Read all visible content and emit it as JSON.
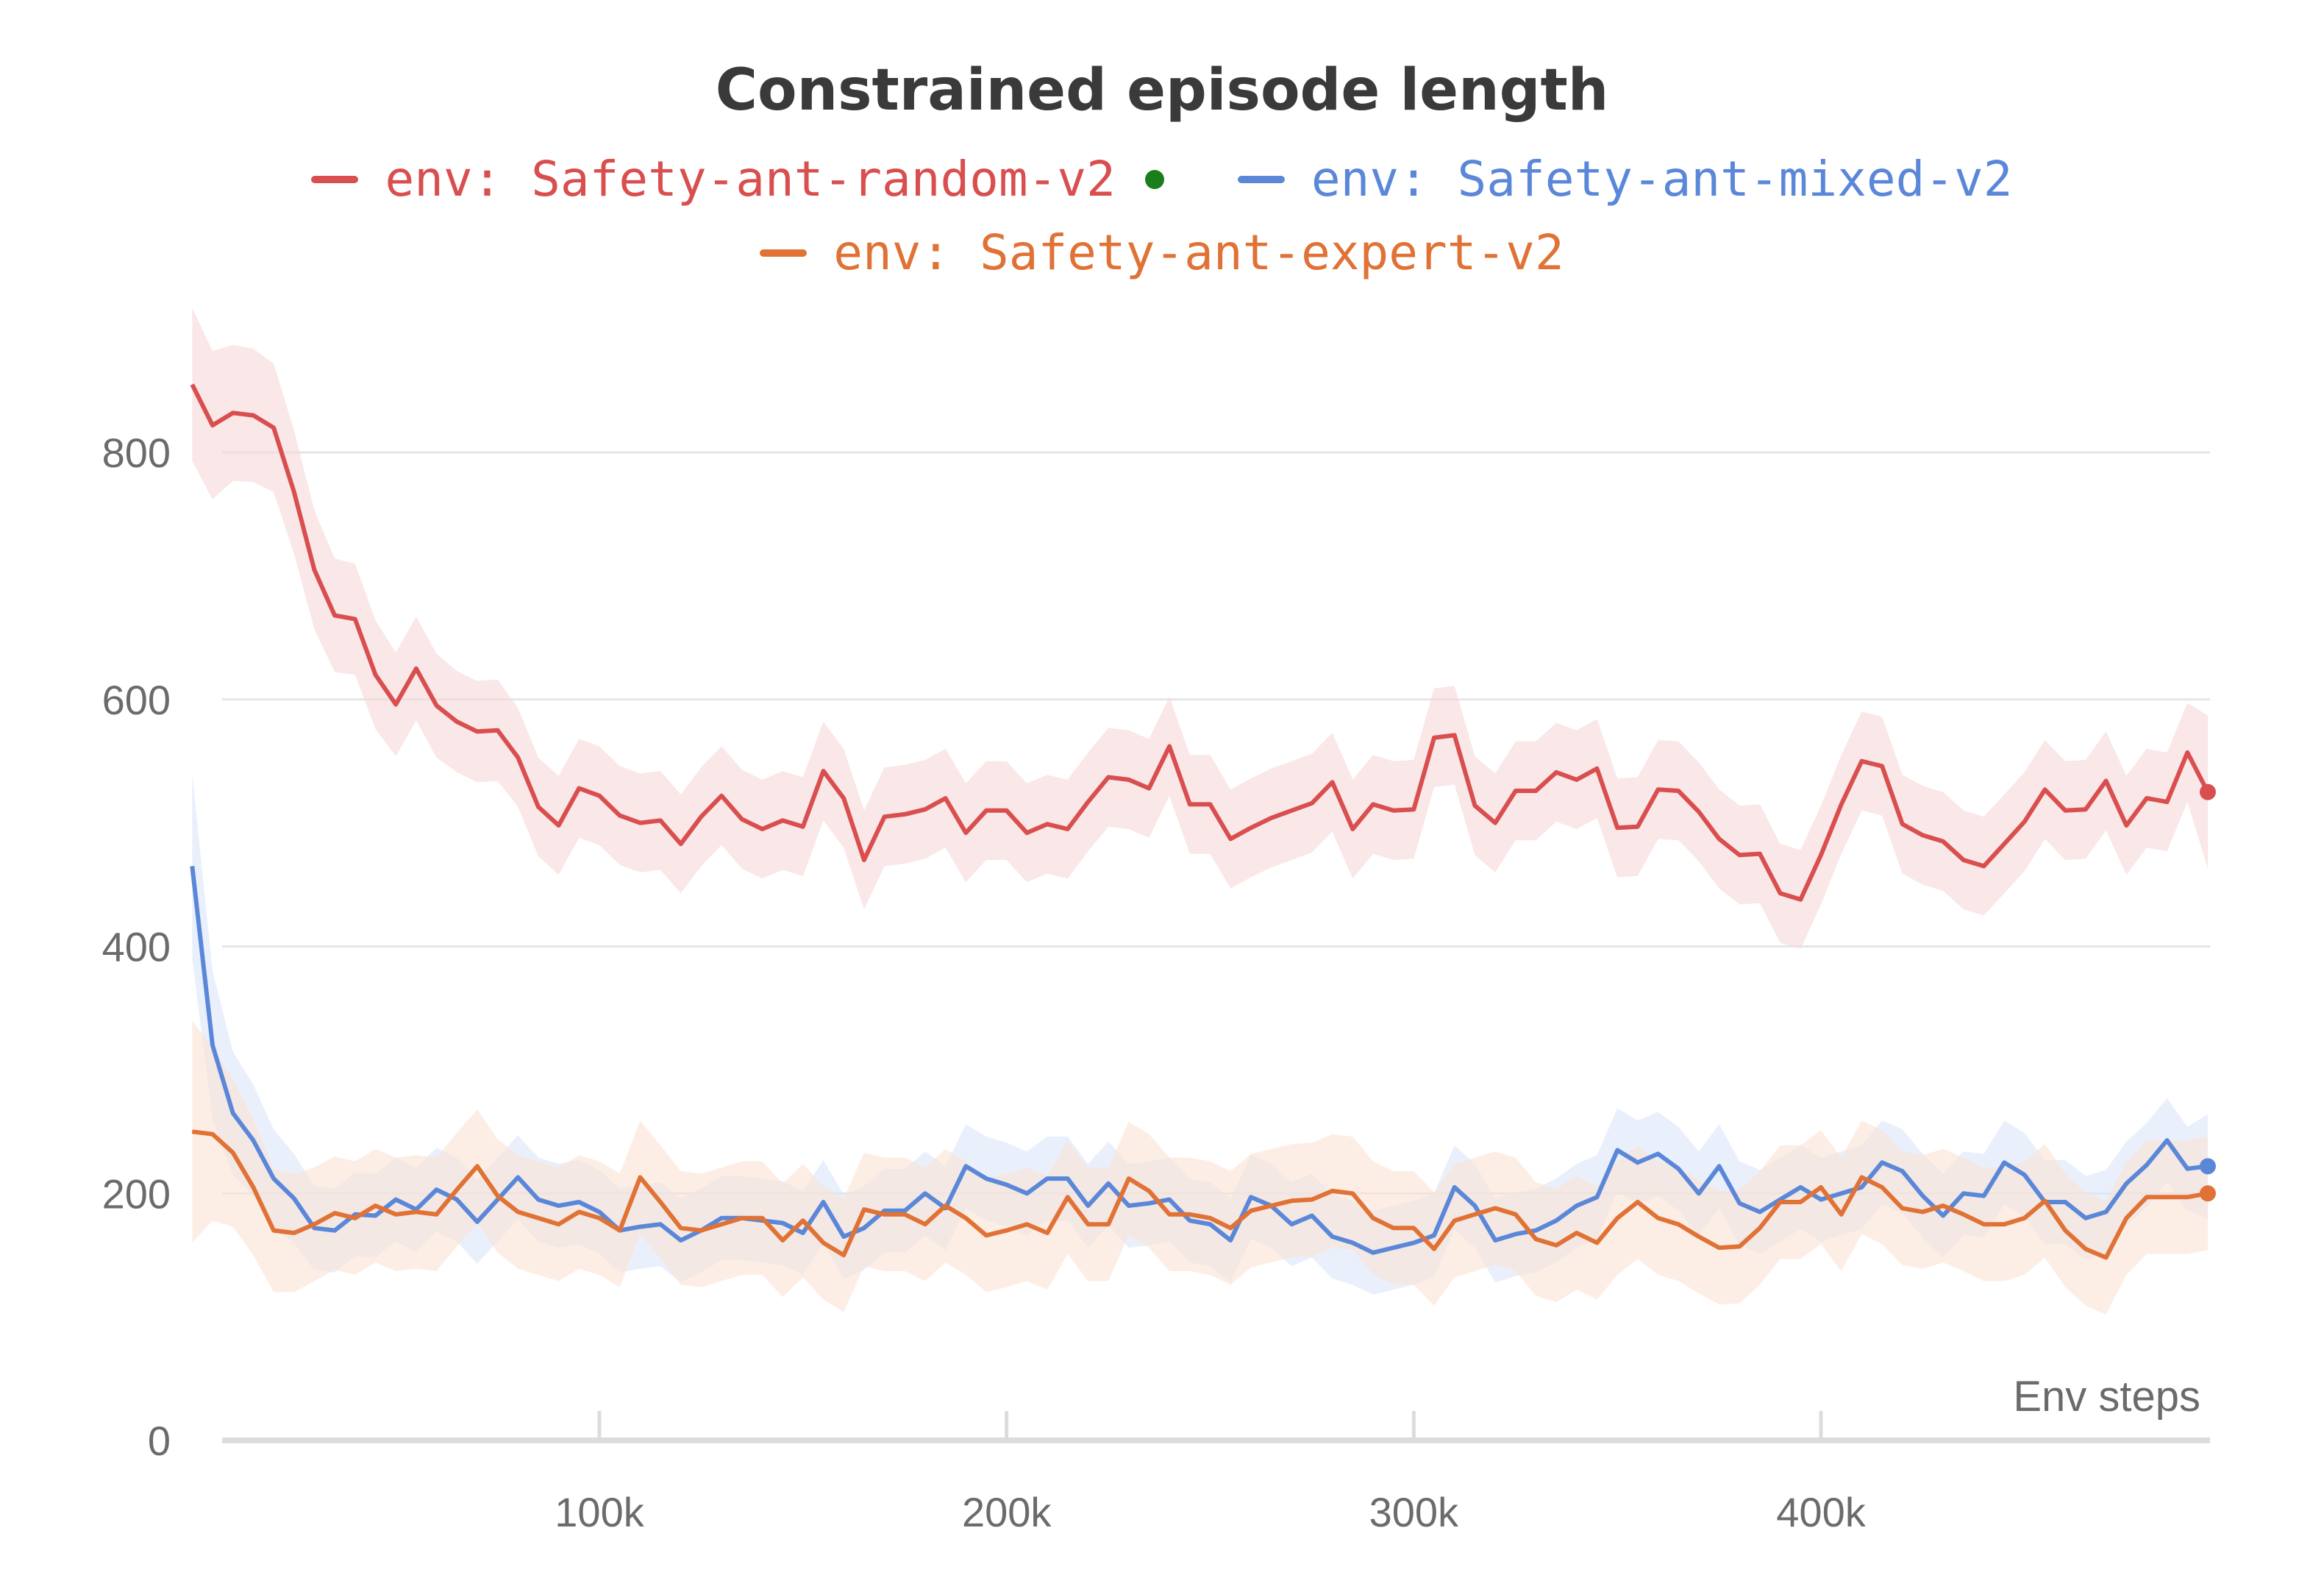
{
  "chart_data": {
    "type": "line",
    "title": "Constrained episode length",
    "xlabel": "Env steps",
    "ylabel": "",
    "xlim": [
      0,
      490000
    ],
    "ylim": [
      0,
      900
    ],
    "x_ticks": [
      100000,
      200000,
      300000,
      400000
    ],
    "x_tick_labels": [
      "100k",
      "200k",
      "300k",
      "400k"
    ],
    "y_ticks": [
      0,
      200,
      400,
      600,
      800
    ],
    "y_tick_labels": [
      "0",
      "200",
      "400",
      "600",
      "800"
    ],
    "grid": "horizontal",
    "legend_position": "top-center",
    "legend_marker_color": "#1a7f1a",
    "x_start": 0,
    "x_step": 5000,
    "series": [
      {
        "name": "env: Safety-ant-random-v2",
        "color": "#d94e4e",
        "band_color": "#f7d7d7",
        "values": [
          855,
          822,
          832,
          830,
          820,
          768,
          705,
          668,
          665,
          620,
          596,
          625,
          595,
          582,
          574,
          575,
          553,
          513,
          498,
          528,
          522,
          506,
          500,
          502,
          483,
          505,
          522,
          503,
          495,
          502,
          497,
          542,
          520,
          470,
          505,
          507,
          511,
          520,
          492,
          510,
          510,
          492,
          499,
          495,
          517,
          537,
          535,
          528,
          562,
          515,
          515,
          487,
          496,
          504,
          510,
          516,
          533,
          495,
          515,
          510,
          511,
          569,
          571,
          514,
          500,
          526,
          526,
          541,
          535,
          544,
          496,
          497,
          527,
          526,
          509,
          487,
          474,
          475,
          443,
          438,
          474,
          515,
          550,
          546,
          499,
          490,
          485,
          470,
          465,
          483,
          501,
          527,
          510,
          511,
          534,
          498,
          520,
          517,
          557,
          525
        ],
        "band_halfwidth": [
          62,
          60,
          55,
          54,
          52,
          50,
          48,
          46,
          45,
          44,
          42,
          42,
          42,
          41,
          41,
          41,
          40,
          40,
          40,
          40,
          40,
          40,
          40,
          40,
          40,
          40,
          40,
          40,
          40,
          40,
          40,
          40,
          40,
          40,
          40,
          40,
          40,
          40,
          40,
          40,
          40,
          40,
          40,
          40,
          40,
          40,
          40,
          40,
          40,
          40,
          40,
          40,
          40,
          40,
          40,
          40,
          40,
          40,
          40,
          40,
          40,
          40,
          40,
          40,
          40,
          40,
          40,
          40,
          40,
          40,
          40,
          40,
          40,
          40,
          40,
          40,
          40,
          40,
          40,
          40,
          40,
          40,
          40,
          40,
          40,
          40,
          40,
          40,
          40,
          40,
          40,
          40,
          40,
          40,
          40,
          40,
          40,
          40,
          40,
          62
        ]
      },
      {
        "name": "env: Safety-ant-mixed-v2",
        "color": "#5b87d9",
        "band_color": "#dbe6fa",
        "values": [
          465,
          320,
          265,
          243,
          212,
          196,
          172,
          170,
          183,
          182,
          195,
          187,
          203,
          195,
          177,
          195,
          213,
          195,
          190,
          193,
          185,
          170,
          173,
          175,
          162,
          170,
          180,
          180,
          178,
          176,
          168,
          193,
          165,
          172,
          186,
          186,
          200,
          188,
          222,
          212,
          207,
          200,
          212,
          212,
          190,
          208,
          190,
          192,
          195,
          178,
          175,
          162,
          197,
          190,
          175,
          182,
          165,
          160,
          152,
          156,
          160,
          166,
          205,
          190,
          162,
          167,
          170,
          178,
          190,
          197,
          235,
          225,
          232,
          220,
          200,
          222,
          192,
          185,
          195,
          205,
          195,
          200,
          205,
          225,
          218,
          198,
          182,
          200,
          198,
          225,
          215,
          193,
          193,
          180,
          185,
          208,
          223,
          243,
          220,
          222
        ],
        "band_halfwidth": [
          75,
          60,
          50,
          45,
          40,
          36,
          34,
          34,
          34,
          34,
          34,
          34,
          34,
          34,
          34,
          34,
          34,
          34,
          34,
          34,
          34,
          34,
          34,
          34,
          34,
          34,
          34,
          34,
          34,
          34,
          34,
          34,
          34,
          34,
          34,
          34,
          34,
          34,
          34,
          34,
          34,
          34,
          34,
          34,
          34,
          34,
          34,
          34,
          34,
          34,
          34,
          34,
          34,
          34,
          34,
          34,
          34,
          34,
          34,
          34,
          34,
          34,
          34,
          34,
          34,
          34,
          34,
          34,
          34,
          34,
          34,
          34,
          34,
          34,
          34,
          34,
          34,
          34,
          34,
          34,
          34,
          34,
          34,
          34,
          34,
          34,
          34,
          34,
          34,
          34,
          34,
          34,
          34,
          34,
          34,
          34,
          34,
          34,
          34,
          42
        ]
      },
      {
        "name": "env: Safety-ant-expert-v2",
        "color": "#e07236",
        "band_color": "#fbe3d3",
        "values": [
          250,
          248,
          233,
          205,
          170,
          168,
          175,
          184,
          180,
          190,
          183,
          185,
          183,
          203,
          222,
          198,
          185,
          180,
          175,
          185,
          180,
          170,
          213,
          193,
          172,
          170,
          175,
          180,
          180,
          162,
          178,
          160,
          150,
          187,
          183,
          183,
          175,
          190,
          180,
          166,
          170,
          175,
          168,
          197,
          175,
          175,
          212,
          202,
          183,
          183,
          180,
          172,
          186,
          190,
          194,
          195,
          202,
          200,
          180,
          172,
          172,
          155,
          178,
          183,
          188,
          183,
          163,
          158,
          168,
          160,
          180,
          193,
          180,
          175,
          165,
          156,
          157,
          172,
          193,
          193,
          205,
          183,
          213,
          205,
          188,
          185,
          190,
          183,
          175,
          175,
          180,
          194,
          170,
          155,
          148,
          180,
          197,
          197,
          197,
          200
        ],
        "band_halfwidth": [
          90,
          70,
          60,
          55,
          50,
          48,
          46,
          46,
          46,
          46,
          46,
          46,
          46,
          46,
          46,
          46,
          46,
          46,
          46,
          46,
          46,
          46,
          46,
          46,
          46,
          46,
          46,
          46,
          46,
          46,
          46,
          46,
          46,
          46,
          46,
          46,
          46,
          46,
          46,
          46,
          46,
          46,
          46,
          46,
          46,
          46,
          46,
          46,
          46,
          46,
          46,
          46,
          46,
          46,
          46,
          46,
          46,
          46,
          46,
          46,
          46,
          46,
          46,
          46,
          46,
          46,
          46,
          46,
          46,
          46,
          46,
          46,
          46,
          46,
          46,
          46,
          46,
          46,
          46,
          46,
          46,
          46,
          46,
          46,
          46,
          46,
          46,
          46,
          46,
          46,
          46,
          46,
          46,
          46,
          46,
          46,
          46,
          46,
          46,
          46
        ]
      }
    ]
  }
}
